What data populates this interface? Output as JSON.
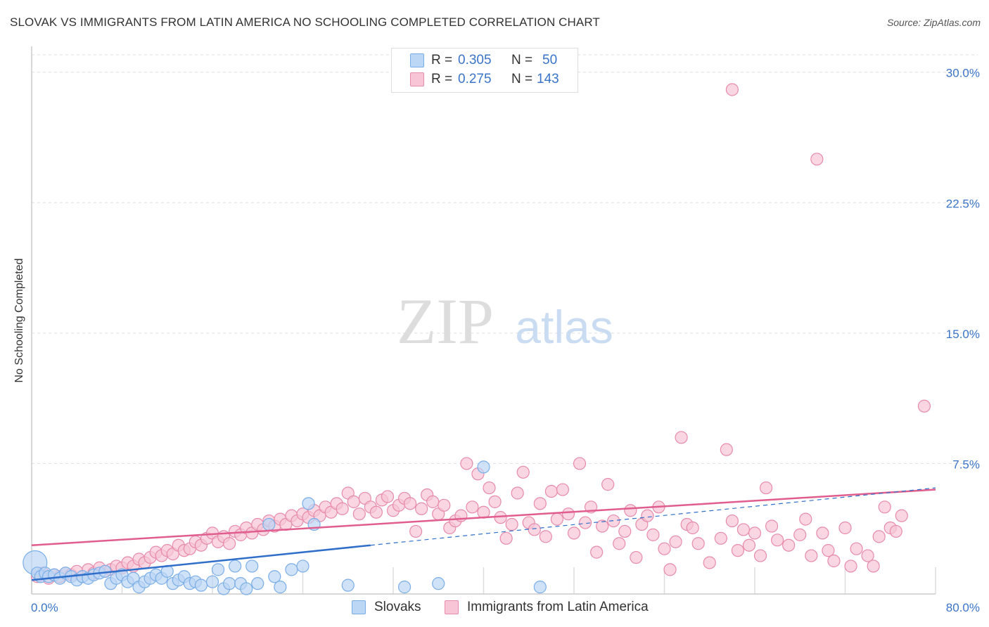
{
  "title": "SLOVAK VS IMMIGRANTS FROM LATIN AMERICA NO SCHOOLING COMPLETED CORRELATION CHART",
  "source": "Source: ZipAtlas.com",
  "watermark": {
    "zip": "ZIP",
    "atlas": "atlas"
  },
  "legend": {
    "r_label": "R =",
    "n_label": "N =",
    "series": [
      {
        "r": "0.305",
        "n": "50"
      },
      {
        "r": "0.275",
        "n": "143"
      }
    ]
  },
  "chart_data": {
    "type": "scatter",
    "title": "SLOVAK VS IMMIGRANTS FROM LATIN AMERICA NO SCHOOLING COMPLETED CORRELATION CHART",
    "xlabel": "",
    "ylabel": "No Schooling Completed",
    "xlim": [
      0,
      80
    ],
    "ylim": [
      0,
      31
    ],
    "x_tick_labels": [
      "0.0%",
      "80.0%"
    ],
    "y_ticks": [
      7.5,
      15.0,
      22.5,
      30.0
    ],
    "y_tick_labels": [
      "7.5%",
      "15.0%",
      "22.5%",
      "30.0%"
    ],
    "x_gridlines": [
      0,
      8,
      16,
      24,
      32,
      40,
      48,
      56,
      64,
      72,
      80
    ],
    "grid": true,
    "legend_placement": "top-center",
    "series": [
      {
        "name": "Slovaks",
        "color": "#7aaee8",
        "fill": "#bcd6f5",
        "trend": {
          "x0": 0,
          "y0": 0.8,
          "x1": 30,
          "y1": 2.8,
          "dashed_to_x": 80,
          "dashed_to_y": 6.1
        },
        "points": [
          [
            0.3,
            1.8
          ],
          [
            0.5,
            1.2
          ],
          [
            0.8,
            1.0
          ],
          [
            1.2,
            1.2
          ],
          [
            1.5,
            1.0
          ],
          [
            2.0,
            1.1
          ],
          [
            2.5,
            0.9
          ],
          [
            3.0,
            1.2
          ],
          [
            3.5,
            1.0
          ],
          [
            4.0,
            0.8
          ],
          [
            4.5,
            1.0
          ],
          [
            5.0,
            0.9
          ],
          [
            5.5,
            1.1
          ],
          [
            6.0,
            1.2
          ],
          [
            6.5,
            1.3
          ],
          [
            7.0,
            0.6
          ],
          [
            7.5,
            0.9
          ],
          [
            8.0,
            1.1
          ],
          [
            8.5,
            0.7
          ],
          [
            9.0,
            0.9
          ],
          [
            9.5,
            0.4
          ],
          [
            10.0,
            0.7
          ],
          [
            10.5,
            0.9
          ],
          [
            11.0,
            1.1
          ],
          [
            11.5,
            0.9
          ],
          [
            12.0,
            1.3
          ],
          [
            12.5,
            0.6
          ],
          [
            13.0,
            0.8
          ],
          [
            13.5,
            1.0
          ],
          [
            14.0,
            0.6
          ],
          [
            14.5,
            0.7
          ],
          [
            15.0,
            0.5
          ],
          [
            16.0,
            0.7
          ],
          [
            16.5,
            1.4
          ],
          [
            17.0,
            0.3
          ],
          [
            17.5,
            0.6
          ],
          [
            18.0,
            1.6
          ],
          [
            18.5,
            0.6
          ],
          [
            19.0,
            0.3
          ],
          [
            19.5,
            1.6
          ],
          [
            20.0,
            0.6
          ],
          [
            21.0,
            4.0
          ],
          [
            21.5,
            1.0
          ],
          [
            22.0,
            0.4
          ],
          [
            23.0,
            1.4
          ],
          [
            24.0,
            1.6
          ],
          [
            24.5,
            5.2
          ],
          [
            25.0,
            4.0
          ],
          [
            28.0,
            0.5
          ],
          [
            33.0,
            0.4
          ],
          [
            36.0,
            0.6
          ],
          [
            40.0,
            7.3
          ],
          [
            45.0,
            0.4
          ]
        ]
      },
      {
        "name": "Immigrants from Latin America",
        "color": "#e88aaa",
        "fill": "#f7c5d6",
        "trend": {
          "x0": 0,
          "y0": 2.8,
          "x1": 80,
          "y1": 6.0
        },
        "points": [
          [
            0.5,
            1.0
          ],
          [
            1.0,
            1.2
          ],
          [
            1.5,
            0.9
          ],
          [
            2.0,
            1.1
          ],
          [
            2.5,
            1.0
          ],
          [
            3.0,
            1.2
          ],
          [
            3.5,
            1.1
          ],
          [
            4.0,
            1.3
          ],
          [
            4.5,
            1.0
          ],
          [
            5.0,
            1.4
          ],
          [
            5.5,
            1.2
          ],
          [
            6.0,
            1.5
          ],
          [
            6.5,
            1.3
          ],
          [
            7.0,
            1.4
          ],
          [
            7.5,
            1.6
          ],
          [
            8.0,
            1.5
          ],
          [
            8.5,
            1.8
          ],
          [
            9.0,
            1.6
          ],
          [
            9.5,
            2.0
          ],
          [
            10.0,
            1.8
          ],
          [
            10.5,
            2.1
          ],
          [
            11.0,
            2.4
          ],
          [
            11.5,
            2.2
          ],
          [
            12.0,
            2.5
          ],
          [
            12.5,
            2.3
          ],
          [
            13.0,
            2.8
          ],
          [
            13.5,
            2.5
          ],
          [
            14.0,
            2.6
          ],
          [
            14.5,
            3.0
          ],
          [
            15.0,
            2.8
          ],
          [
            15.5,
            3.2
          ],
          [
            16.0,
            3.5
          ],
          [
            16.5,
            3.0
          ],
          [
            17.0,
            3.3
          ],
          [
            17.5,
            2.9
          ],
          [
            18.0,
            3.6
          ],
          [
            18.5,
            3.4
          ],
          [
            19.0,
            3.8
          ],
          [
            19.5,
            3.5
          ],
          [
            20.0,
            4.0
          ],
          [
            20.5,
            3.7
          ],
          [
            21.0,
            4.2
          ],
          [
            21.5,
            3.9
          ],
          [
            22.0,
            4.3
          ],
          [
            22.5,
            4.0
          ],
          [
            23.0,
            4.5
          ],
          [
            23.5,
            4.2
          ],
          [
            24.0,
            4.6
          ],
          [
            24.5,
            4.4
          ],
          [
            25.0,
            4.8
          ],
          [
            25.5,
            4.5
          ],
          [
            26.0,
            5.0
          ],
          [
            26.5,
            4.7
          ],
          [
            27.0,
            5.2
          ],
          [
            27.5,
            4.9
          ],
          [
            28.0,
            5.8
          ],
          [
            28.5,
            5.3
          ],
          [
            29.0,
            4.6
          ],
          [
            29.5,
            5.5
          ],
          [
            30.0,
            5.0
          ],
          [
            30.5,
            4.7
          ],
          [
            31.0,
            5.4
          ],
          [
            31.5,
            5.6
          ],
          [
            32.0,
            4.8
          ],
          [
            32.5,
            5.1
          ],
          [
            33.0,
            5.5
          ],
          [
            33.5,
            5.2
          ],
          [
            34.0,
            3.6
          ],
          [
            34.5,
            4.9
          ],
          [
            35.0,
            5.7
          ],
          [
            35.5,
            5.3
          ],
          [
            36.0,
            4.6
          ],
          [
            36.5,
            5.1
          ],
          [
            37.0,
            3.8
          ],
          [
            37.5,
            4.2
          ],
          [
            38.0,
            4.5
          ],
          [
            38.5,
            7.5
          ],
          [
            39.0,
            5.0
          ],
          [
            39.5,
            6.9
          ],
          [
            40.0,
            4.7
          ],
          [
            40.5,
            6.1
          ],
          [
            41.0,
            5.3
          ],
          [
            41.5,
            4.4
          ],
          [
            42.0,
            3.2
          ],
          [
            42.5,
            4.0
          ],
          [
            43.0,
            5.8
          ],
          [
            43.5,
            7.0
          ],
          [
            44.0,
            4.1
          ],
          [
            44.5,
            3.7
          ],
          [
            45.0,
            5.2
          ],
          [
            45.5,
            3.3
          ],
          [
            46.0,
            5.9
          ],
          [
            46.5,
            4.3
          ],
          [
            47.0,
            6.0
          ],
          [
            47.5,
            4.6
          ],
          [
            48.0,
            3.5
          ],
          [
            48.5,
            7.5
          ],
          [
            49.0,
            4.1
          ],
          [
            49.5,
            5.0
          ],
          [
            50.0,
            2.4
          ],
          [
            50.5,
            3.9
          ],
          [
            51.0,
            6.3
          ],
          [
            51.5,
            4.2
          ],
          [
            52.0,
            2.9
          ],
          [
            52.5,
            3.6
          ],
          [
            53.0,
            4.8
          ],
          [
            53.5,
            2.1
          ],
          [
            54.0,
            4.0
          ],
          [
            54.5,
            4.5
          ],
          [
            55.0,
            3.4
          ],
          [
            55.5,
            5.0
          ],
          [
            56.0,
            2.6
          ],
          [
            56.5,
            1.4
          ],
          [
            57.0,
            3.0
          ],
          [
            57.5,
            9.0
          ],
          [
            58.0,
            4.0
          ],
          [
            58.5,
            3.8
          ],
          [
            59.0,
            2.9
          ],
          [
            60.0,
            1.8
          ],
          [
            61.0,
            3.2
          ],
          [
            61.5,
            8.3
          ],
          [
            62.0,
            4.2
          ],
          [
            62.5,
            2.5
          ],
          [
            63.0,
            3.7
          ],
          [
            63.5,
            2.8
          ],
          [
            64.0,
            3.5
          ],
          [
            64.5,
            2.2
          ],
          [
            65.0,
            6.1
          ],
          [
            65.5,
            3.9
          ],
          [
            66.0,
            3.1
          ],
          [
            67.0,
            2.8
          ],
          [
            68.0,
            3.4
          ],
          [
            68.5,
            4.3
          ],
          [
            69.0,
            2.2
          ],
          [
            70.0,
            3.5
          ],
          [
            70.5,
            2.5
          ],
          [
            71.0,
            1.9
          ],
          [
            72.0,
            3.8
          ],
          [
            72.5,
            1.6
          ],
          [
            73.0,
            2.6
          ],
          [
            74.0,
            2.2
          ],
          [
            75.0,
            3.3
          ],
          [
            75.5,
            5.0
          ],
          [
            76.0,
            3.8
          ],
          [
            77.0,
            4.5
          ],
          [
            79.0,
            10.8
          ],
          [
            62.0,
            29.0
          ],
          [
            69.5,
            25.0
          ],
          [
            76.5,
            3.6
          ],
          [
            74.5,
            1.6
          ]
        ]
      }
    ]
  },
  "bottom_legend": [
    {
      "label": "Slovaks"
    },
    {
      "label": "Immigrants from Latin America"
    }
  ],
  "colors": {
    "blue_line": "#2f6fc9",
    "pink_line": "#e05d8d",
    "tick_text": "#3a74c9",
    "grid": "#dddddd"
  }
}
